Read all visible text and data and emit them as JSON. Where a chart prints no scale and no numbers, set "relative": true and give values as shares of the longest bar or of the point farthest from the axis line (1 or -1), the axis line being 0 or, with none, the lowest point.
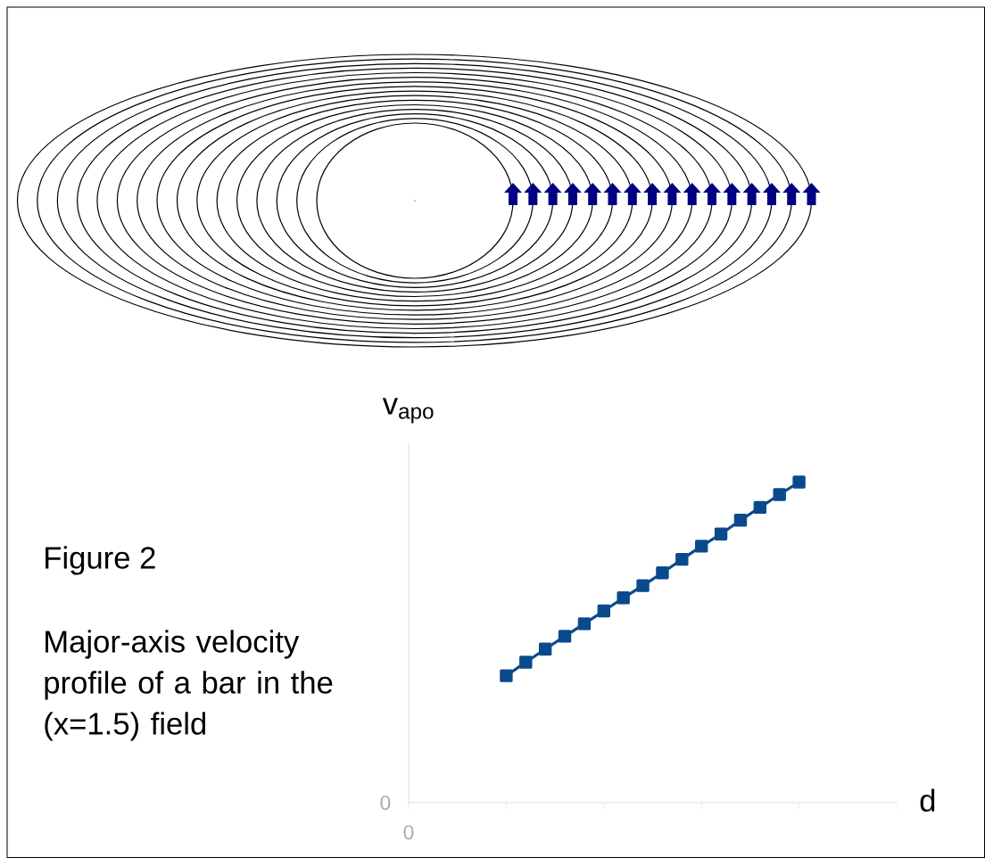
{
  "chart_data": {
    "type": "line",
    "relative": true,
    "title": "Figure 2",
    "subtitle": "Major-axis velocity profile of a bar in the (x=1.5) field",
    "xlabel": "d",
    "ylabel": "v$_{apo}$",
    "annotations": [
      "0",
      "0"
    ],
    "categories": [
      null,
      null,
      null,
      null,
      null,
      null,
      null,
      null,
      null,
      null,
      null,
      null,
      null,
      null,
      null,
      null
    ],
    "values": [
      0.396,
      0.438,
      0.479,
      0.519,
      0.558,
      0.598,
      0.639,
      0.677,
      0.717,
      0.759,
      0.8,
      0.838,
      0.881,
      0.921,
      0.961,
      1
    ],
    "color": "#0a4a8c",
    "marker": "square",
    "line_style": "solid",
    "grid": false
  }
}
